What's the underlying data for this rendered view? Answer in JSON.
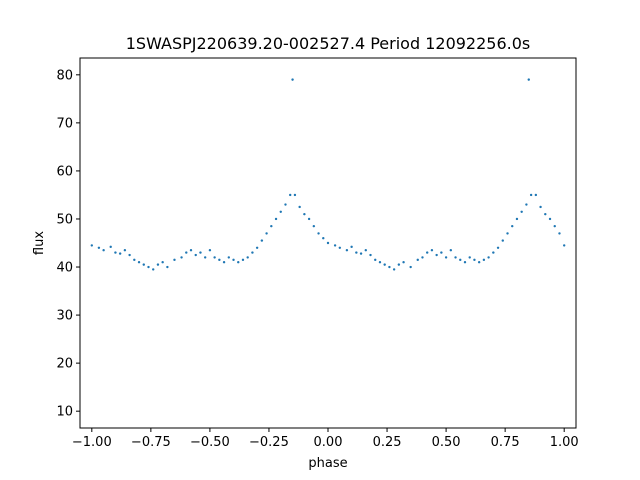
{
  "chart_data": {
    "type": "scatter",
    "title": "1SWASPJ220639.20-002527.4 Period 12092256.0s",
    "xlabel": "phase",
    "ylabel": "flux",
    "xlim": [
      -1.05,
      1.05
    ],
    "ylim": [
      6.5,
      83.5
    ],
    "x_ticks": [
      -1.0,
      -0.75,
      -0.5,
      -0.25,
      0.0,
      0.25,
      0.5,
      0.75,
      1.0
    ],
    "x_tick_labels": [
      "−1.00",
      "−0.75",
      "−0.50",
      "−0.25",
      "0.00",
      "0.25",
      "0.50",
      "0.75",
      "1.00"
    ],
    "y_ticks": [
      10,
      20,
      30,
      40,
      50,
      60,
      70,
      80
    ],
    "y_tick_labels": [
      "10",
      "20",
      "30",
      "40",
      "50",
      "60",
      "70",
      "80"
    ],
    "marker_color": "#1f77b4",
    "grid": false,
    "series": [
      {
        "x": [
          -1.0,
          -0.97,
          -0.95,
          -0.92,
          -0.9,
          -0.88,
          -0.86,
          -0.84,
          -0.82,
          -0.8,
          -0.78,
          -0.76,
          -0.74,
          -0.72,
          -0.7,
          -0.68,
          -0.65,
          -0.62,
          -0.6,
          -0.58,
          -0.56,
          -0.54,
          -0.52,
          -0.5,
          -0.48,
          -0.46,
          -0.44,
          -0.42,
          -0.4,
          -0.38,
          -0.36,
          -0.34,
          -0.32,
          -0.3,
          -0.28,
          -0.26,
          -0.24,
          -0.22,
          -0.2,
          -0.18,
          -0.16,
          -0.15,
          -0.14,
          -0.12,
          -0.1,
          -0.08,
          -0.06,
          -0.04,
          -0.02,
          0.0,
          0.03,
          0.05,
          0.08,
          0.1,
          0.12,
          0.14,
          0.16,
          0.18,
          0.2,
          0.22,
          0.24,
          0.26,
          0.28,
          0.3,
          0.32,
          0.35,
          0.38,
          0.4,
          0.42,
          0.44,
          0.46,
          0.48,
          0.5,
          0.52,
          0.54,
          0.56,
          0.58,
          0.6,
          0.62,
          0.64,
          0.66,
          0.68,
          0.7,
          0.72,
          0.74,
          0.76,
          0.78,
          0.8,
          0.82,
          0.84,
          0.85,
          0.86,
          0.88,
          0.9,
          0.92,
          0.94,
          0.96,
          0.98,
          1.0
        ],
        "y": [
          44.5,
          44.0,
          43.5,
          44.2,
          43.0,
          42.8,
          43.5,
          42.5,
          41.5,
          41.0,
          40.5,
          40.0,
          39.5,
          40.5,
          41.0,
          40.0,
          41.5,
          42.0,
          43.0,
          43.5,
          42.5,
          43.0,
          42.0,
          43.5,
          42.0,
          41.5,
          41.0,
          42.0,
          41.5,
          41.0,
          41.5,
          42.0,
          43.0,
          44.0,
          45.5,
          47.0,
          48.5,
          50.0,
          51.5,
          53.0,
          55.0,
          79.0,
          55.0,
          52.5,
          51.0,
          50.0,
          48.5,
          47.0,
          46.0,
          45.0,
          44.5,
          44.0,
          43.5,
          44.2,
          43.0,
          42.8,
          43.5,
          42.5,
          41.5,
          41.0,
          40.5,
          40.0,
          39.5,
          40.5,
          41.0,
          40.0,
          41.5,
          42.0,
          43.0,
          43.5,
          42.5,
          43.0,
          42.0,
          43.5,
          42.0,
          41.5,
          41.0,
          42.0,
          41.5,
          41.0,
          41.5,
          42.0,
          43.0,
          44.0,
          45.5,
          47.0,
          48.5,
          50.0,
          51.5,
          53.0,
          79.0,
          55.0,
          55.0,
          52.5,
          51.0,
          50.0,
          48.5,
          47.0,
          44.5
        ]
      }
    ]
  }
}
